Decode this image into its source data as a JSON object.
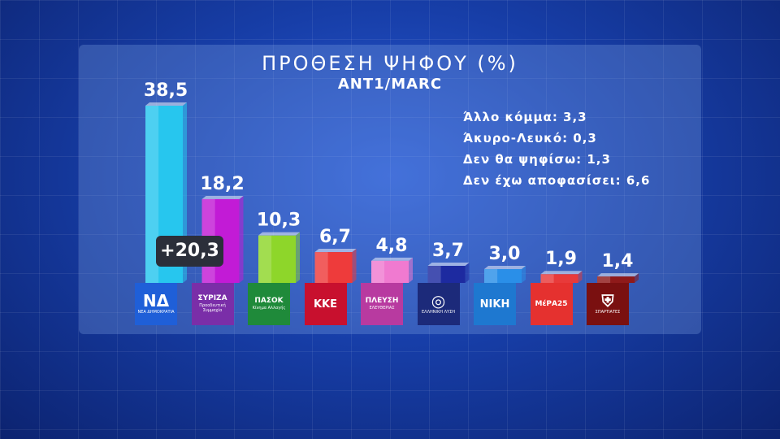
{
  "title": "ΠΡΟΘΕΣΗ ΨΗΦΟΥ (%)",
  "subtitle": "ANT1/MARC",
  "notes": [
    "Άλλο κόμμα: 3,3",
    "Άκυρο-Λευκό: 0,3",
    "Δεν θα ψηφίσω: 1,3",
    "Δεν έχω αποφασίσει: 6,6"
  ],
  "difference_label": "+20,3",
  "chart_data": {
    "type": "bar",
    "title": "ΠΡΟΘΕΣΗ ΨΗΦΟΥ (%)",
    "subtitle": "ANT1/MARC",
    "categories": [
      "Νέα Δημοκρατία",
      "ΣΥΡΙΖΑ",
      "ΠΑΣΟΚ",
      "ΚΚΕ",
      "Πλεύση Ελευθερίας",
      "Ελληνική Λύση",
      "ΝΙΚΗ",
      "ΜέΡΑ25",
      "Σπαρτιάτες"
    ],
    "values": [
      38.5,
      18.2,
      10.3,
      6.7,
      4.8,
      3.7,
      3.0,
      1.9,
      1.4
    ],
    "value_labels": [
      "38,5",
      "18,2",
      "10,3",
      "6,7",
      "4,8",
      "3,7",
      "3,0",
      "1,9",
      "1,4"
    ],
    "colors": [
      "#27c6ee",
      "#c21bd6",
      "#8ed62a",
      "#ee3b3b",
      "#f07ad0",
      "#1d2aa0",
      "#2a8fe8",
      "#e83a3a",
      "#8f1a1a"
    ],
    "xlabel": "",
    "ylabel": "",
    "ylim": [
      0,
      40
    ],
    "grid": false,
    "legend": "none"
  },
  "logos": [
    {
      "icon": "nd-logo",
      "text": "ΝΔ",
      "sub": "ΝΕΑ ΔΗΜΟΚΡΑΤΙΑ",
      "bg": "#1f5fd8"
    },
    {
      "icon": "syriza-logo",
      "text": "ΣΥΡΙΖΑ",
      "sub": "Προοδευτική Συμμαχία",
      "bg": "#7a2ea8"
    },
    {
      "icon": "pasok-logo",
      "text": "ΠΑΣΟΚ",
      "sub": "Κίνημα Αλλαγής",
      "bg": "#1f8a3a"
    },
    {
      "icon": "kke-logo",
      "text": "ΚΚΕ",
      "sub": "",
      "bg": "#c8102e"
    },
    {
      "icon": "plefsi-logo",
      "text": "ΠΛΕΥΣΗ",
      "sub": "ΕΛΕΥΘΕΡΙΑΣ",
      "bg": "#b83aa0"
    },
    {
      "icon": "elliniki-lysi-logo",
      "text": "◎",
      "sub": "ΕΛΛΗΝΙΚΗ ΛΥΣΗ",
      "bg": "#1c2a7a"
    },
    {
      "icon": "niki-logo",
      "text": "ΝΙΚΗ",
      "sub": "",
      "bg": "#1e78d0"
    },
    {
      "icon": "mera25-logo",
      "text": "ΜέΡΑ25",
      "sub": "",
      "bg": "#e5312f"
    },
    {
      "icon": "spartiates-logo",
      "text": "⛨",
      "sub": "ΣΠΑΡΤΙΑΤΕΣ",
      "bg": "#7a1010"
    }
  ]
}
